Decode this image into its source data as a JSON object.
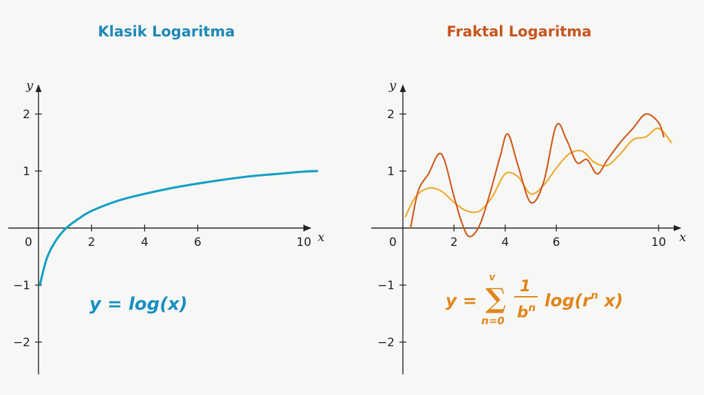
{
  "chart_data": [
    {
      "type": "line",
      "title": "Klasik Logaritma",
      "xlabel": "x",
      "ylabel": "y",
      "xlim": [
        0,
        10.5
      ],
      "ylim": [
        -2.2,
        2.2
      ],
      "x_ticks": [
        0,
        2,
        4,
        6,
        10
      ],
      "y_ticks": [
        -2,
        -1,
        1,
        2
      ],
      "x_tick_labels": [
        "0",
        "2",
        "4",
        "6",
        "10"
      ],
      "y_tick_labels": [
        "−2",
        "−1",
        "1",
        "2"
      ],
      "grid": false,
      "series": [
        {
          "x": [
            0.05,
            0.3,
            0.6,
            1.0,
            1.5,
            2.0,
            3.0,
            4.0,
            5.0,
            6.0,
            7.0,
            8.0,
            9.0,
            10.0,
            10.5
          ],
          "y": [
            -1.0,
            -0.55,
            -0.26,
            -0.02,
            0.16,
            0.3,
            0.48,
            0.6,
            0.7,
            0.78,
            0.85,
            0.91,
            0.95,
            0.99,
            1.0
          ],
          "color": "#149fc6"
        }
      ],
      "formula": {
        "lhs": "y = ",
        "rhs": "log(x)"
      },
      "title_color": "#1f88b8",
      "formula_color": "#1a8fc0"
    },
    {
      "type": "line",
      "title": "Fraktal Logaritma",
      "xlabel": "x",
      "ylabel": "y",
      "xlim": [
        0,
        10.5
      ],
      "ylim": [
        -2.2,
        2.2
      ],
      "x_ticks": [
        0,
        2,
        4,
        6,
        10
      ],
      "y_ticks": [
        -2,
        -1,
        1,
        2
      ],
      "x_tick_labels": [
        "0",
        "2",
        "4",
        "6",
        "10"
      ],
      "y_tick_labels": [
        "−2",
        "−1",
        "1",
        "2"
      ],
      "grid": false,
      "series": [
        {
          "x": [
            0.1,
            0.5,
            1.0,
            1.5,
            2.0,
            2.5,
            3.0,
            3.5,
            4.0,
            4.5,
            5.0,
            5.5,
            6.0,
            6.5,
            7.0,
            7.5,
            8.0,
            8.5,
            9.0,
            9.5,
            10.0,
            10.5
          ],
          "y": [
            0.2,
            0.55,
            0.7,
            0.65,
            0.45,
            0.3,
            0.3,
            0.55,
            0.95,
            0.9,
            0.6,
            0.75,
            1.05,
            1.3,
            1.35,
            1.15,
            1.1,
            1.3,
            1.55,
            1.6,
            1.75,
            1.5
          ],
          "color": "#f0a830"
        },
        {
          "x": [
            0.3,
            0.6,
            1.0,
            1.5,
            2.0,
            2.3,
            2.6,
            3.0,
            3.4,
            3.8,
            4.1,
            4.5,
            5.0,
            5.5,
            6.0,
            6.4,
            6.8,
            7.2,
            7.6,
            8.0,
            8.5,
            9.0,
            9.5,
            10.0,
            10.2
          ],
          "y": [
            0.0,
            0.65,
            0.95,
            1.3,
            0.55,
            0.1,
            -0.15,
            0.05,
            0.6,
            1.25,
            1.65,
            1.1,
            0.45,
            0.8,
            1.8,
            1.55,
            1.15,
            1.2,
            0.95,
            1.2,
            1.5,
            1.75,
            2.0,
            1.85,
            1.6
          ],
          "color": "#cf5a1e"
        }
      ],
      "formula": {
        "lhs": "y = ",
        "sum_top": "v",
        "sum_bottom": "n=0",
        "numerator": "1",
        "denominator": "b",
        "denominator_exp": "n",
        "log": "log(r",
        "log_exp": "n",
        "log_tail": " x)"
      },
      "title_color": "#c8541e",
      "formula_color": "#e0861d"
    }
  ]
}
